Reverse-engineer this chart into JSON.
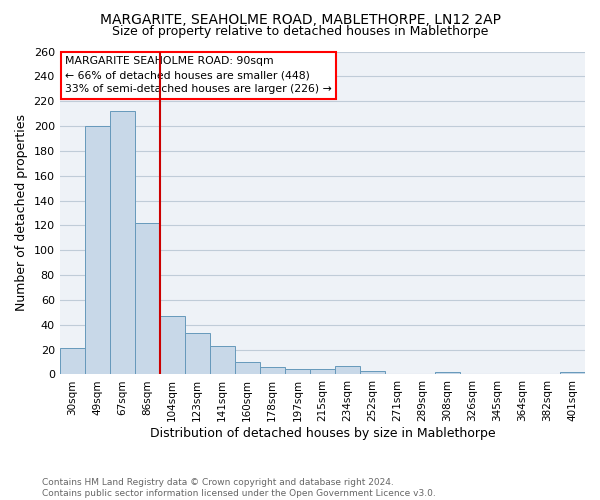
{
  "title": "MARGARITE, SEAHOLME ROAD, MABLETHORPE, LN12 2AP",
  "subtitle": "Size of property relative to detached houses in Mablethorpe",
  "xlabel": "Distribution of detached houses by size in Mablethorpe",
  "ylabel": "Number of detached properties",
  "categories": [
    "30sqm",
    "49sqm",
    "67sqm",
    "86sqm",
    "104sqm",
    "123sqm",
    "141sqm",
    "160sqm",
    "178sqm",
    "197sqm",
    "215sqm",
    "234sqm",
    "252sqm",
    "271sqm",
    "289sqm",
    "308sqm",
    "326sqm",
    "345sqm",
    "364sqm",
    "382sqm",
    "401sqm"
  ],
  "values": [
    21,
    200,
    212,
    122,
    47,
    33,
    23,
    10,
    6,
    4,
    4,
    7,
    3,
    0,
    0,
    2,
    0,
    0,
    0,
    0,
    2
  ],
  "bar_color": "#c8d8e8",
  "bar_edge_color": "#6699bb",
  "red_line_x": 3.5,
  "annotation_text": "MARGARITE SEAHOLME ROAD: 90sqm\n← 66% of detached houses are smaller (448)\n33% of semi-detached houses are larger (226) →",
  "annotation_box_color": "#ffffff",
  "annotation_box_edge_color": "#ff0000",
  "red_line_color": "#cc0000",
  "ylim": [
    0,
    260
  ],
  "yticks": [
    0,
    20,
    40,
    60,
    80,
    100,
    120,
    140,
    160,
    180,
    200,
    220,
    240,
    260
  ],
  "footer_line1": "Contains HM Land Registry data © Crown copyright and database right 2024.",
  "footer_line2": "Contains public sector information licensed under the Open Government Licence v3.0.",
  "background_color": "#eef2f7",
  "grid_color": "#c0ccd8",
  "title_fontsize": 10,
  "subtitle_fontsize": 9,
  "ylabel_fontsize": 9,
  "xlabel_fontsize": 9
}
